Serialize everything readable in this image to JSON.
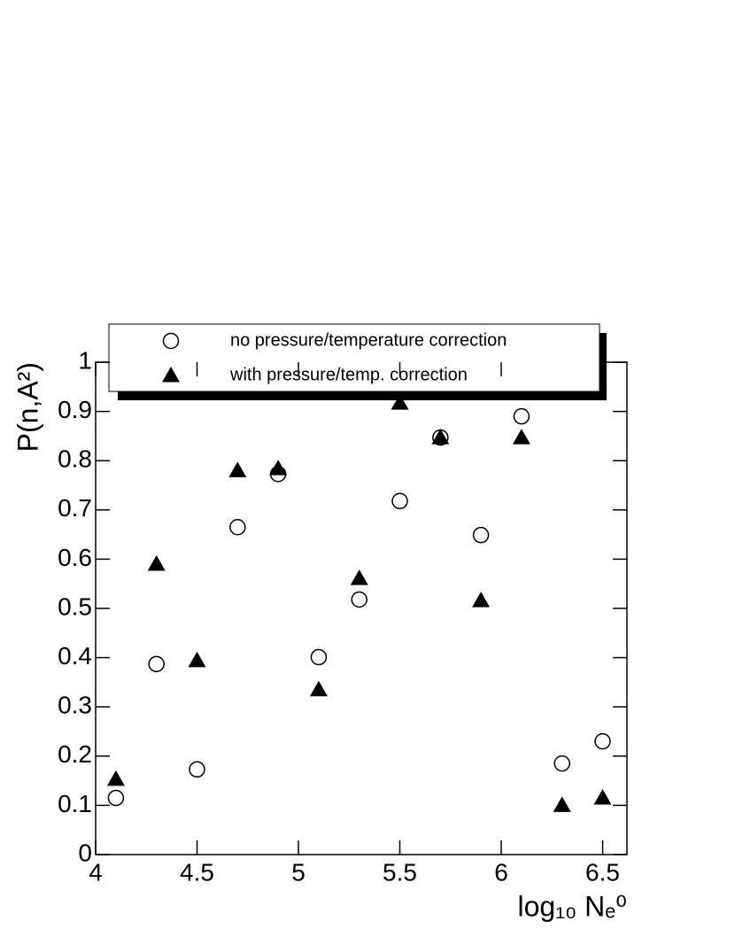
{
  "chart_data": {
    "type": "scatter",
    "xlabel": "log₁₀ Nₑ⁰",
    "ylabel": "P(n,A²)",
    "xlim": [
      4,
      6.62
    ],
    "ylim": [
      0,
      1
    ],
    "xticks": [
      4,
      4.5,
      5,
      5.5,
      6,
      6.5
    ],
    "yticks": [
      0,
      0.1,
      0.2,
      0.3,
      0.4,
      0.5,
      0.6,
      0.7,
      0.8,
      0.9,
      1
    ],
    "series": [
      {
        "name": "no pressure/temperature correction",
        "color": "#000000",
        "marker": "open-circle",
        "x": [
          4.1,
          4.3,
          4.5,
          4.7,
          4.9,
          5.1,
          5.3,
          5.5,
          5.7,
          5.9,
          6.1,
          6.3,
          6.5
        ],
        "values": [
          0.115,
          0.387,
          0.173,
          0.665,
          0.773,
          0.401,
          0.518,
          0.718,
          0.847,
          0.649,
          0.89,
          0.185,
          0.23
        ]
      },
      {
        "name": "with pressure/temp. correction",
        "color": "#000000",
        "marker": "filled-triangle",
        "x": [
          4.1,
          4.3,
          4.5,
          4.7,
          4.9,
          5.1,
          5.3,
          5.5,
          5.7,
          5.9,
          6.1,
          6.3,
          6.5
        ],
        "values": [
          0.153,
          0.59,
          0.394,
          0.78,
          0.784,
          0.335,
          0.561,
          0.917,
          0.847,
          0.516,
          0.847,
          0.1,
          0.115
        ]
      }
    ]
  }
}
